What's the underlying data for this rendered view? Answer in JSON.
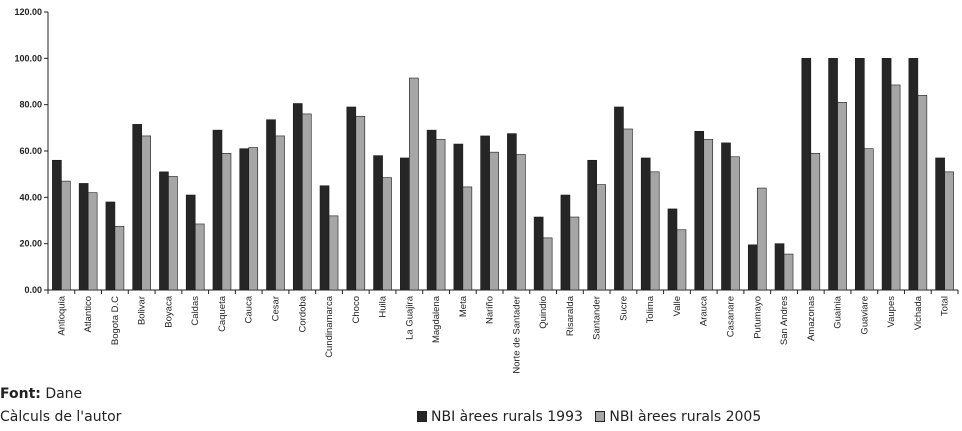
{
  "chart_data": {
    "type": "bar",
    "title": "",
    "xlabel": "",
    "ylabel": "",
    "ylim": [
      0,
      120
    ],
    "yticks": [
      "0.00",
      "20.00",
      "40.00",
      "60.00",
      "80.00",
      "100.00",
      "120.00"
    ],
    "grid": false,
    "legend_position": "bottom-right",
    "categories": [
      "Antioquia",
      "Atlantico",
      "Bogota D.C",
      "Bolivar",
      "Boyaca",
      "Caldas",
      "Caqueta",
      "Cauca",
      "Cesar",
      "Cordoba",
      "Cundinamarca",
      "Choco",
      "Huila",
      "La Guajira",
      "Magdalena",
      "Meta",
      "Nariño",
      "Norte de Santader",
      "Quindio",
      "Risaralda",
      "Santander",
      "Sucre",
      "Tolima",
      "Valle",
      "Arauca",
      "Casanare",
      "Putumayo",
      "San Andres",
      "Amazonas",
      "Guainia",
      "Guaviare",
      "Vaupes",
      "Vichada",
      "Total"
    ],
    "series": [
      {
        "name": "NBI àrees rurals 1993",
        "color": "#262626",
        "values": [
          56.0,
          46.0,
          38.0,
          71.5,
          51.0,
          41.0,
          69.0,
          61.0,
          73.5,
          80.5,
          45.0,
          79.0,
          58.0,
          57.0,
          69.0,
          63.0,
          66.5,
          67.5,
          31.5,
          41.0,
          56.0,
          79.0,
          57.0,
          35.0,
          68.5,
          63.5,
          19.5,
          20.0,
          100.0,
          100.0,
          100.0,
          100.0,
          100.0,
          57.0
        ]
      },
      {
        "name": "NBI àrees rurals 2005",
        "color": "#a6a6a6",
        "values": [
          47.0,
          42.0,
          27.5,
          66.5,
          49.0,
          28.5,
          59.0,
          61.5,
          66.5,
          76.0,
          32.0,
          75.0,
          48.5,
          91.5,
          65.0,
          44.5,
          59.5,
          58.5,
          22.5,
          31.5,
          45.5,
          69.5,
          51.0,
          26.0,
          65.0,
          57.5,
          44.0,
          15.5,
          59.0,
          81.0,
          61.0,
          88.5,
          84.0,
          51.0
        ]
      }
    ]
  },
  "source": {
    "label": "Font:",
    "value": " Dane",
    "note": "Càlculs de l'autor"
  }
}
